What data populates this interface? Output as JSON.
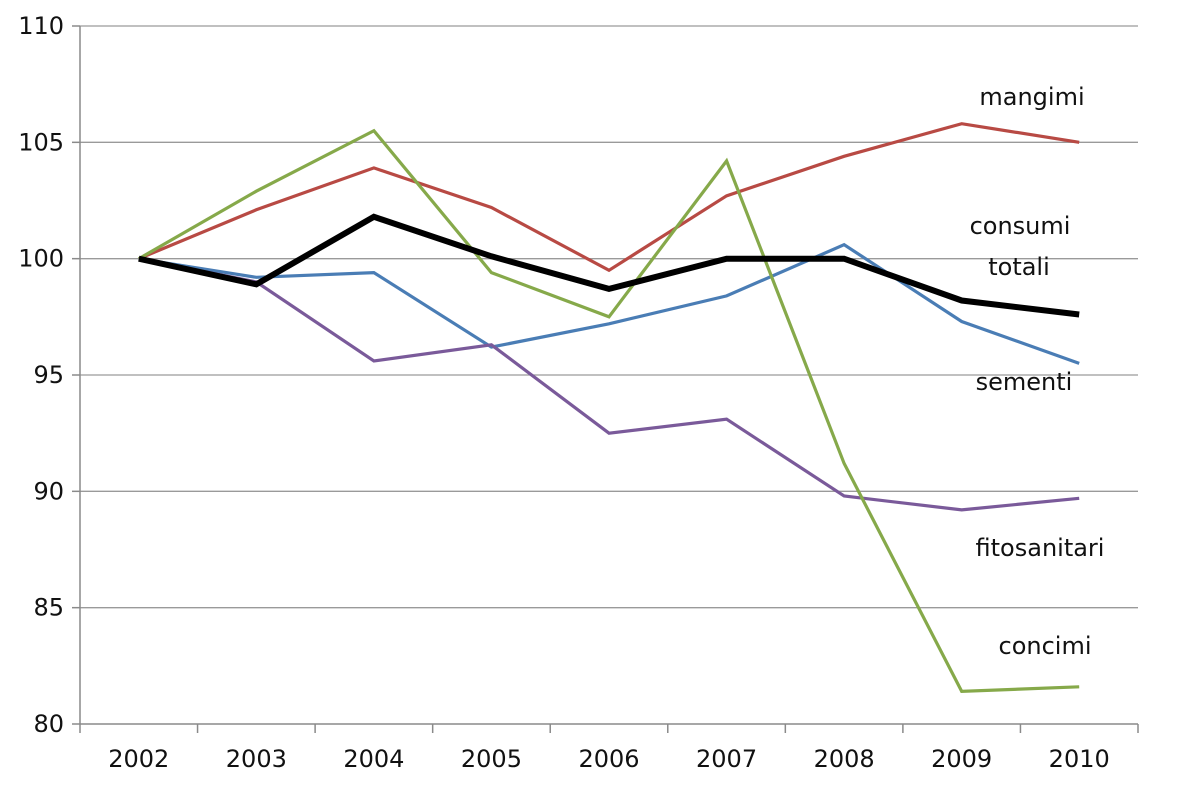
{
  "chart_data": {
    "type": "line",
    "title": "",
    "xlabel": "",
    "ylabel": "",
    "categories": [
      "2002",
      "2003",
      "2004",
      "2005",
      "2006",
      "2007",
      "2008",
      "2009",
      "2010"
    ],
    "ylim": [
      80,
      110
    ],
    "yticks": [
      80,
      85,
      90,
      95,
      100,
      105,
      110
    ],
    "grid": "horizontal",
    "legend": "inline labels at right",
    "series": [
      {
        "name": "mangimi",
        "color": "#b84a44",
        "values": [
          100,
          102.1,
          103.9,
          102.2,
          99.5,
          102.7,
          104.4,
          105.8,
          105.0
        ]
      },
      {
        "name": "consumi totali",
        "color": "#000000",
        "values": [
          100,
          98.9,
          101.8,
          100.1,
          98.7,
          100.0,
          100.0,
          98.2,
          97.6
        ]
      },
      {
        "name": "sementi",
        "color": "#4a7db5",
        "values": [
          100,
          99.2,
          99.4,
          96.2,
          97.2,
          98.4,
          100.6,
          97.3,
          95.5
        ]
      },
      {
        "name": "fitosanitari",
        "color": "#7a5a9a",
        "values": [
          100,
          99.0,
          95.6,
          96.3,
          92.5,
          93.1,
          89.8,
          89.2,
          89.7
        ]
      },
      {
        "name": "concimi",
        "color": "#86a94a",
        "values": [
          100,
          102.9,
          105.5,
          99.4,
          97.5,
          104.2,
          91.2,
          81.4,
          81.6
        ]
      }
    ],
    "annotations": [
      "mangimi",
      "consumi",
      "totali",
      "sementi",
      "fitosanitari",
      "concimi"
    ]
  }
}
